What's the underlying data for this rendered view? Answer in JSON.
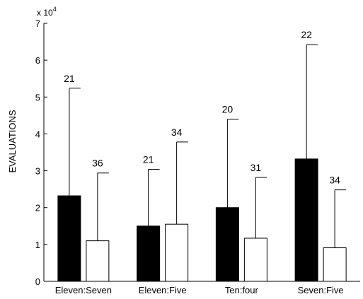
{
  "chart_data": {
    "type": "bar",
    "title": "",
    "xlabel": "",
    "ylabel": "EVALUATIONS",
    "scale_label": {
      "base": "x 10",
      "exponent": "4"
    },
    "ylim": [
      0,
      70000
    ],
    "yticks": [
      0,
      10000,
      20000,
      30000,
      40000,
      50000,
      60000,
      70000
    ],
    "ytick_labels": [
      "0",
      "1",
      "2",
      "3",
      "4",
      "5",
      "6",
      "7"
    ],
    "categories": [
      "Eleven:Seven",
      "Eleven:Five",
      "Ten:four",
      "Seven:Five"
    ],
    "series": [
      {
        "color": "#000000",
        "values": [
          23200,
          15000,
          20000,
          33200
        ],
        "error_upper": [
          52400,
          30400,
          44000,
          64200
        ],
        "labels": [
          "21",
          "21",
          "20",
          "22"
        ]
      },
      {
        "color": "#ffffff",
        "values": [
          11000,
          15500,
          11700,
          9100
        ],
        "error_upper": [
          29400,
          37800,
          28200,
          24800
        ],
        "labels": [
          "36",
          "34",
          "31",
          "34"
        ]
      }
    ],
    "grid": false,
    "legend": "none"
  }
}
